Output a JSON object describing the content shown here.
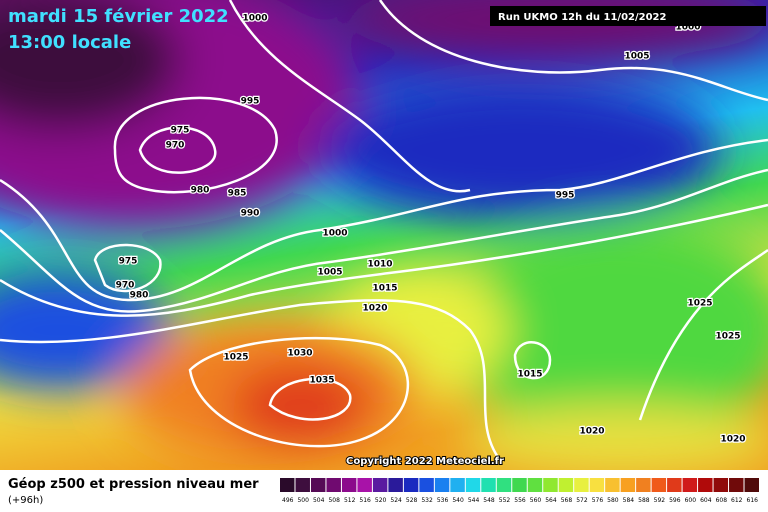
{
  "header": {
    "date": "mardi 15 février 2022",
    "time": "13:00 locale",
    "run": "Run UKMO 12h du 11/02/2022"
  },
  "isobar_labels": [
    "1000",
    "1000",
    "1005",
    "995",
    "975",
    "970",
    "980",
    "985",
    "990",
    "1000",
    "995",
    "975",
    "970",
    "980",
    "1005",
    "1010",
    "1015",
    "1020",
    "1025",
    "1025",
    "1025",
    "1030",
    "1035",
    "1015",
    "1020",
    "1020"
  ],
  "footer": {
    "copyright": "Copyright 2022 Meteociel.fr",
    "legend_title": "Géop z500 et pression niveau mer",
    "lead_time": "(+96h)"
  },
  "colorbar": {
    "values": [
      496,
      500,
      504,
      508,
      512,
      516,
      520,
      524,
      528,
      532,
      536,
      540,
      544,
      548,
      552,
      556,
      560,
      564,
      568,
      572,
      576,
      580,
      584,
      588,
      592,
      596,
      600,
      604,
      608,
      612,
      616
    ],
    "colors": [
      "#2a0a2a",
      "#3e0e3e",
      "#560a56",
      "#700a70",
      "#8c0a8c",
      "#a812a8",
      "#5a1aa0",
      "#2a1a9a",
      "#1a2ac0",
      "#1a50e0",
      "#1a80f0",
      "#20b0f0",
      "#20d8e8",
      "#20e0b0",
      "#30e080",
      "#40d850",
      "#60e040",
      "#90e830",
      "#c0f030",
      "#e8f040",
      "#f8e040",
      "#f8c030",
      "#f8a020",
      "#f08020",
      "#f05a1a",
      "#e03a1a",
      "#d01a1a",
      "#b00a0a",
      "#900a0a",
      "#700a0a",
      "#500a0a"
    ]
  }
}
